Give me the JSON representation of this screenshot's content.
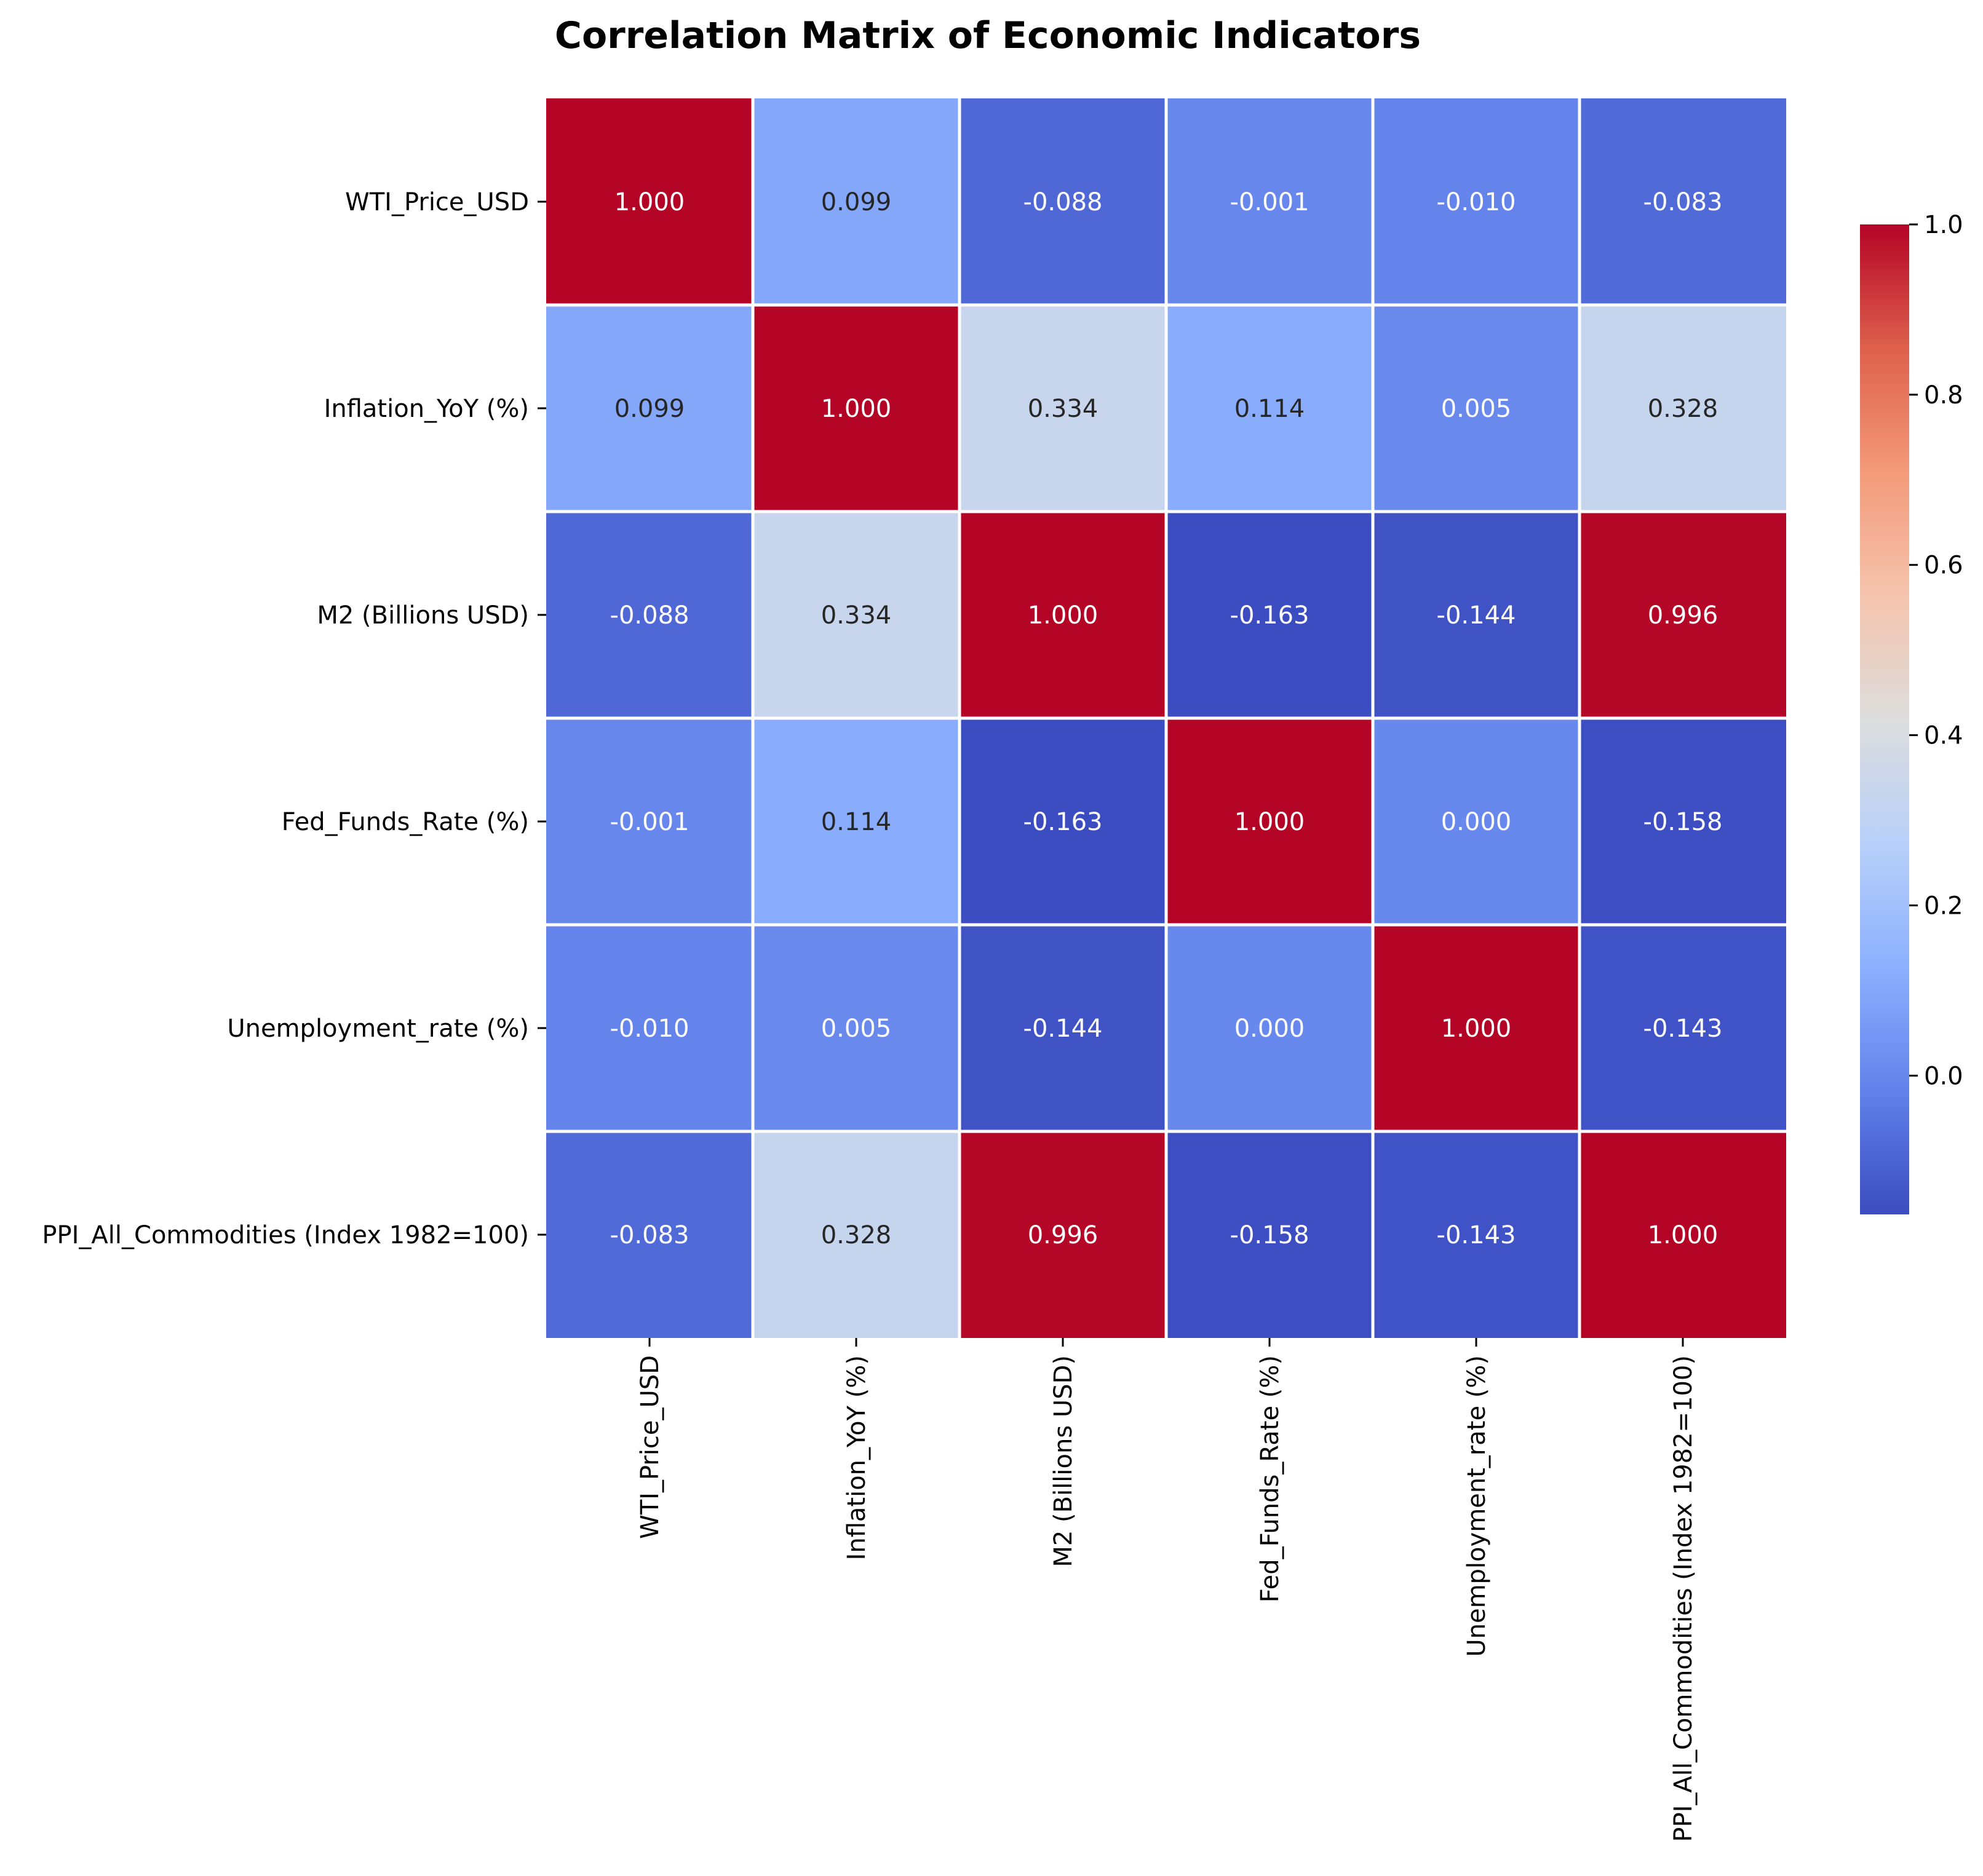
{
  "chart_data": {
    "type": "heatmap",
    "title": "Correlation Matrix of Economic Indicators",
    "rows": [
      "WTI_Price_USD",
      "Inflation_YoY (%)",
      "M2 (Billions USD)",
      "Fed_Funds_Rate (%)",
      "Unemployment_rate (%)",
      "PPI_All_Commodities (Index 1982=100)"
    ],
    "columns": [
      "WTI_Price_USD",
      "Inflation_YoY (%)",
      "M2 (Billions USD)",
      "Fed_Funds_Rate (%)",
      "Unemployment_rate (%)",
      "PPI_All_Commodities (Index 1982=100)"
    ],
    "values": [
      [
        1.0,
        0.099,
        -0.088,
        -0.001,
        -0.01,
        -0.083
      ],
      [
        0.099,
        1.0,
        0.334,
        0.114,
        0.005,
        0.328
      ],
      [
        -0.088,
        0.334,
        1.0,
        -0.163,
        -0.144,
        0.996
      ],
      [
        -0.001,
        0.114,
        -0.163,
        1.0,
        0.0,
        -0.158
      ],
      [
        -0.01,
        0.005,
        -0.144,
        0.0,
        1.0,
        -0.143
      ],
      [
        -0.083,
        0.328,
        0.996,
        -0.158,
        -0.143,
        1.0
      ]
    ],
    "cell_labels": [
      [
        "1.000",
        "0.099",
        "-0.088",
        "-0.001",
        "-0.010",
        "-0.083"
      ],
      [
        "0.099",
        "1.000",
        "0.334",
        "0.114",
        "0.005",
        "0.328"
      ],
      [
        "-0.088",
        "0.334",
        "1.000",
        "-0.163",
        "-0.144",
        "0.996"
      ],
      [
        "-0.001",
        "0.114",
        "-0.163",
        "1.000",
        "0.000",
        "-0.158"
      ],
      [
        "-0.010",
        "0.005",
        "-0.144",
        "0.000",
        "1.000",
        "-0.143"
      ],
      [
        "-0.083",
        "0.328",
        "0.996",
        "-0.158",
        "-0.143",
        "1.000"
      ]
    ],
    "colormap": "coolwarm",
    "colorbar": {
      "range": [
        -0.163,
        1.0
      ],
      "ticks": [
        0.0,
        0.2,
        0.4,
        0.6,
        0.8,
        1.0
      ],
      "tick_labels": [
        "0.0",
        "0.2",
        "0.4",
        "0.6",
        "0.8",
        "1.0"
      ]
    },
    "grid_line_color": "#ffffff",
    "legend": "none",
    "colorbar_position": "right"
  }
}
